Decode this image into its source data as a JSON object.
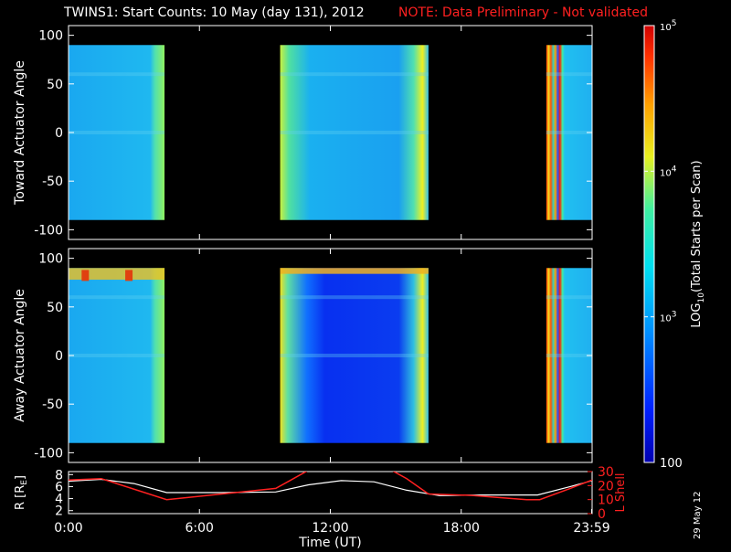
{
  "header": {
    "title": "TWINS1: Start Counts: 10 May (day 131), 2012",
    "note": "NOTE: Data Preliminary - Not validated"
  },
  "footer": {
    "date_stamp": "29 May 12"
  },
  "colors": {
    "background": "#000000",
    "note_text": "#ff2020",
    "radius_line": "#ffffff",
    "lshell_line": "#ff2020"
  },
  "chart_data": [
    {
      "type": "heatmap",
      "panel": "toward",
      "ylabel": "Toward Actuator Angle",
      "yticks": [
        "100",
        "50",
        "0",
        "-50",
        "-100"
      ],
      "ylim": [
        -110,
        110
      ],
      "xlim": [
        0,
        24
      ],
      "data_blocks": [
        {
          "x": [
            0.0,
            4.4
          ],
          "y": [
            -90,
            90
          ],
          "log_counts": 2.9
        },
        {
          "x": [
            9.7,
            16.5
          ],
          "y": [
            -90,
            90
          ],
          "log_counts": 2.8
        },
        {
          "x": [
            21.9,
            24.0
          ],
          "y": [
            -90,
            90
          ],
          "log_counts": 3.0
        }
      ]
    },
    {
      "type": "heatmap",
      "panel": "away",
      "ylabel": "Away Actuator Angle",
      "yticks": [
        "100",
        "50",
        "0",
        "-50",
        "-100"
      ],
      "ylim": [
        -110,
        110
      ],
      "xlim": [
        0,
        24
      ],
      "data_blocks": [
        {
          "x": [
            0.0,
            4.4
          ],
          "y": [
            -90,
            90
          ],
          "log_counts": 2.9
        },
        {
          "x": [
            9.7,
            16.5
          ],
          "y": [
            -90,
            90
          ],
          "log_counts": 2.5
        },
        {
          "x": [
            21.9,
            24.0
          ],
          "y": [
            -90,
            90
          ],
          "log_counts": 2.9
        }
      ]
    },
    {
      "type": "line",
      "panel": "orbit",
      "ylabel": "R [R",
      "ylabel_sub": "E",
      "ylabel_close": "]",
      "y2label": "L Shell",
      "yticks": [
        "8",
        "6",
        "4",
        "2"
      ],
      "y2ticks": [
        "30",
        "20",
        "10",
        "0"
      ],
      "xlabel": "Time (UT)",
      "xticks": [
        "0:00",
        "6:00",
        "12:00",
        "18:00",
        "23:59"
      ],
      "xtick_hours": [
        0,
        6,
        12,
        18,
        23.98
      ],
      "ylim": [
        1.5,
        8.5
      ],
      "y2lim": [
        0,
        30
      ],
      "xlim": [
        0,
        24
      ],
      "series": [
        {
          "axis": "left",
          "x": [
            0,
            1.5,
            3,
            4.5,
            7,
            9.5,
            11,
            12.5,
            14,
            15.5,
            17,
            19,
            21.5,
            23,
            24
          ],
          "y": [
            6.9,
            7.2,
            6.5,
            5.0,
            5.0,
            5.1,
            6.3,
            7.0,
            6.8,
            5.4,
            4.5,
            4.6,
            4.6,
            6.0,
            7.0
          ]
        },
        {
          "axis": "right",
          "x": [
            0,
            1.5,
            4.5,
            9.5,
            10.2,
            11.0,
            14.8,
            15.5,
            16.5,
            18.5,
            21.0,
            21.6,
            23,
            24
          ],
          "y": [
            24,
            25,
            10,
            18,
            24,
            31,
            31,
            25,
            14,
            13,
            10,
            10,
            18,
            24
          ]
        }
      ]
    }
  ],
  "colorbar": {
    "label_pre": "LOG",
    "label_sub": "10",
    "label_post": "(Total Starts per Scan)",
    "ticks": [
      {
        "base": "10",
        "exp": "5",
        "value": 5
      },
      {
        "base": "10",
        "exp": "4",
        "value": 4
      },
      {
        "base": "10",
        "exp": "3",
        "value": 3
      },
      {
        "base": "100",
        "exp": "",
        "value": 2
      }
    ],
    "range": [
      2,
      5
    ]
  }
}
